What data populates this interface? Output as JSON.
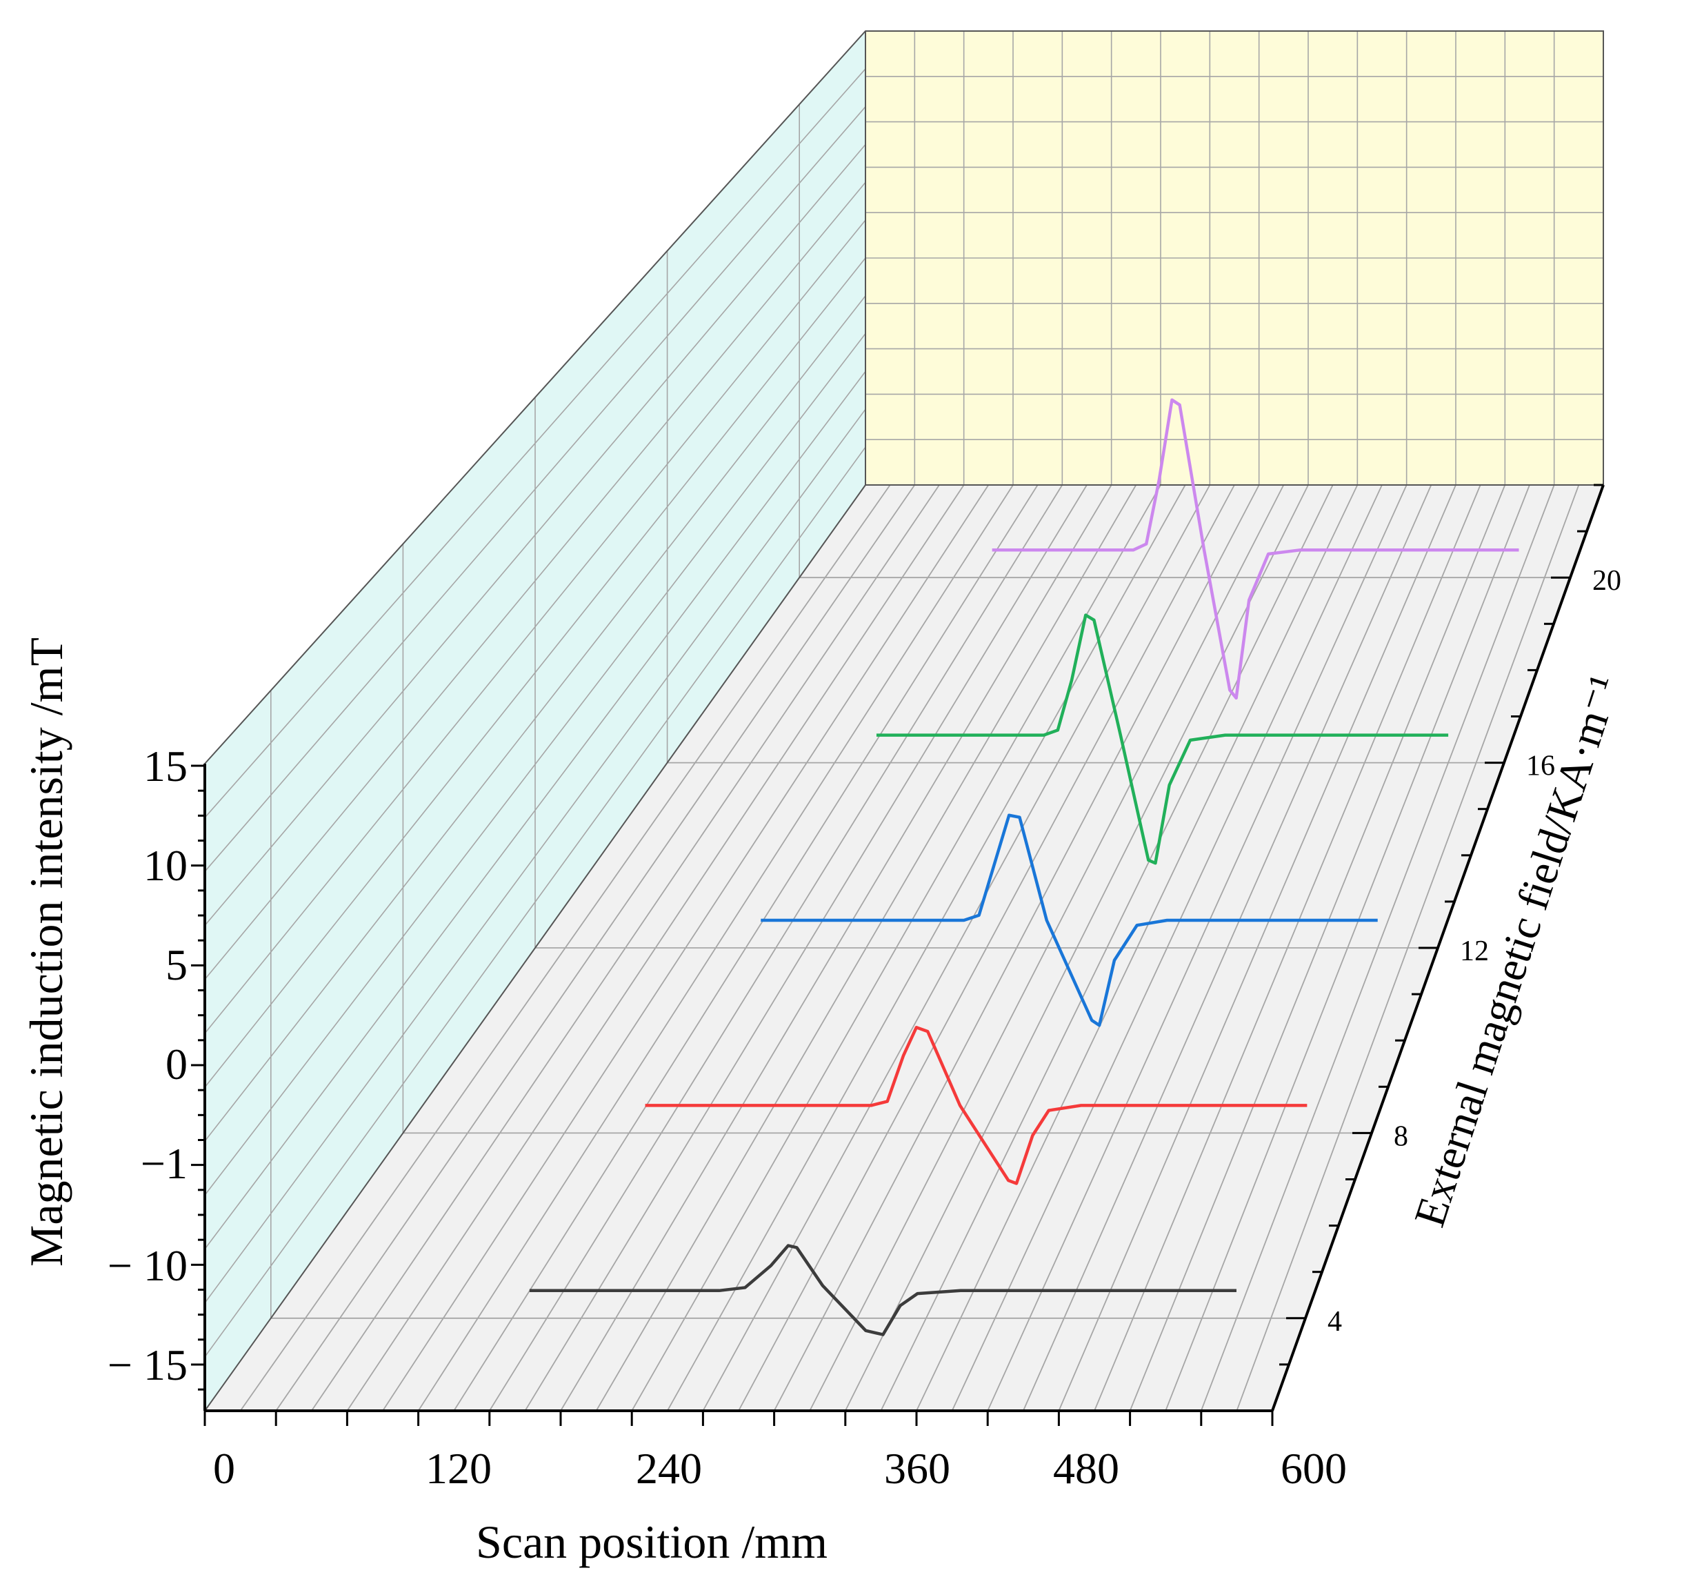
{
  "chart_data": {
    "type": "line",
    "projection": "3d-waterfall",
    "xlabel": "Scan position /mm",
    "ylabel": "Magnetic induction intensity /mT",
    "zlabel": "External magnetic field/KA·m⁻¹",
    "x_ticks": [
      "0",
      "120",
      "240",
      "360",
      "480",
      "600"
    ],
    "y_ticks": [
      "15",
      "10",
      "5",
      "0",
      "−1",
      "− 10",
      "− 15"
    ],
    "z_ticks": [
      "4",
      "8",
      "12",
      "16",
      "20"
    ],
    "xlim": [
      0,
      600
    ],
    "zlim": [
      2,
      22
    ],
    "grid": true,
    "colors": {
      "back_wall": "#fefcd9",
      "side_wall": "#e0f7f5",
      "floor": "#f1f1f1",
      "grid": "#a6a6a6",
      "axis": "#000000"
    },
    "series": [
      {
        "field": 4,
        "color": "#3c3c3c",
        "points": [
          [
            150,
            0
          ],
          [
            260,
            0
          ],
          [
            275,
            0.3
          ],
          [
            290,
            2.5
          ],
          [
            300,
            4.5
          ],
          [
            305,
            4.3
          ],
          [
            320,
            0.5
          ],
          [
            345,
            -4
          ],
          [
            355,
            -4.4
          ],
          [
            365,
            -1.5
          ],
          [
            375,
            -0.3
          ],
          [
            400,
            0
          ],
          [
            560,
            0
          ]
        ]
      },
      {
        "field": 8,
        "color": "#f53a3a",
        "points": [
          [
            150,
            0
          ],
          [
            290,
            0
          ],
          [
            300,
            0.4
          ],
          [
            310,
            5
          ],
          [
            318,
            7.8
          ],
          [
            325,
            7.4
          ],
          [
            345,
            0
          ],
          [
            375,
            -7.5
          ],
          [
            380,
            -7.8
          ],
          [
            390,
            -3
          ],
          [
            400,
            -0.5
          ],
          [
            420,
            0
          ],
          [
            560,
            0
          ]
        ]
      },
      {
        "field": 12,
        "color": "#1976d8",
        "points": [
          [
            150,
            0
          ],
          [
            285,
            0
          ],
          [
            295,
            0.5
          ],
          [
            305,
            5.5
          ],
          [
            315,
            10.5
          ],
          [
            322,
            10.3
          ],
          [
            340,
            0
          ],
          [
            370,
            -10
          ],
          [
            375,
            -10.5
          ],
          [
            385,
            -4
          ],
          [
            400,
            -0.5
          ],
          [
            420,
            0
          ],
          [
            560,
            0
          ]
        ]
      },
      {
        "field": 16,
        "color": "#21b05a",
        "points": [
          [
            150,
            0
          ],
          [
            270,
            0
          ],
          [
            280,
            0.5
          ],
          [
            290,
            5.5
          ],
          [
            300,
            12
          ],
          [
            306,
            11.5
          ],
          [
            325,
            0
          ],
          [
            345,
            -12.5
          ],
          [
            350,
            -12.8
          ],
          [
            360,
            -5
          ],
          [
            375,
            -0.5
          ],
          [
            400,
            0
          ],
          [
            560,
            0
          ]
        ]
      },
      {
        "field": 20,
        "color": "#cc88ee",
        "points": [
          [
            150,
            0
          ],
          [
            260,
            0
          ],
          [
            270,
            0.6
          ],
          [
            280,
            7
          ],
          [
            290,
            15
          ],
          [
            296,
            14.5
          ],
          [
            315,
            0
          ],
          [
            335,
            -14
          ],
          [
            340,
            -14.8
          ],
          [
            350,
            -5
          ],
          [
            365,
            -0.4
          ],
          [
            390,
            0
          ],
          [
            560,
            0
          ]
        ]
      }
    ]
  }
}
